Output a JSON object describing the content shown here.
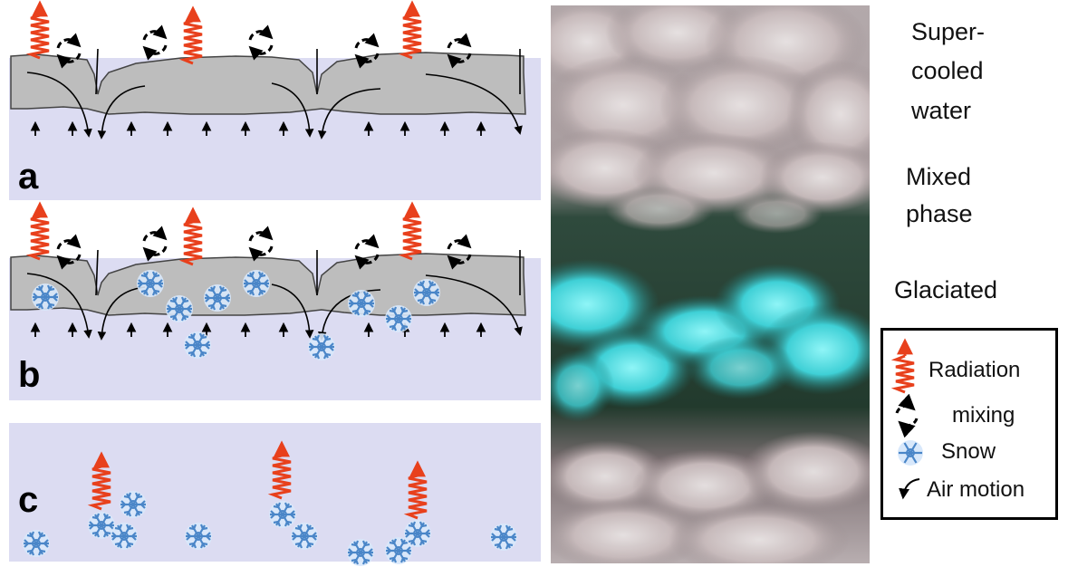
{
  "panels": {
    "a": {
      "letter": "a"
    },
    "b": {
      "letter": "b"
    },
    "c": {
      "letter": "c"
    }
  },
  "zones": {
    "supercooled": [
      "Super-",
      "cooled",
      "water"
    ],
    "mixed": [
      "Mixed",
      "phase"
    ],
    "glaciated": "Glaciated"
  },
  "legend": {
    "radiation": "Radiation",
    "mixing": "mixing",
    "snow": "Snow",
    "air_motion": "Air motion"
  },
  "colors": {
    "radiation": "#e8401c",
    "cloud": "#bdbdbd",
    "panel_bg": "#dcdcf2",
    "snow": "#5b9bd5",
    "ice": "#5fe8e8"
  },
  "icons": [
    "radiation-icon",
    "mixing-icon",
    "snow-icon",
    "air-motion-icon"
  ]
}
